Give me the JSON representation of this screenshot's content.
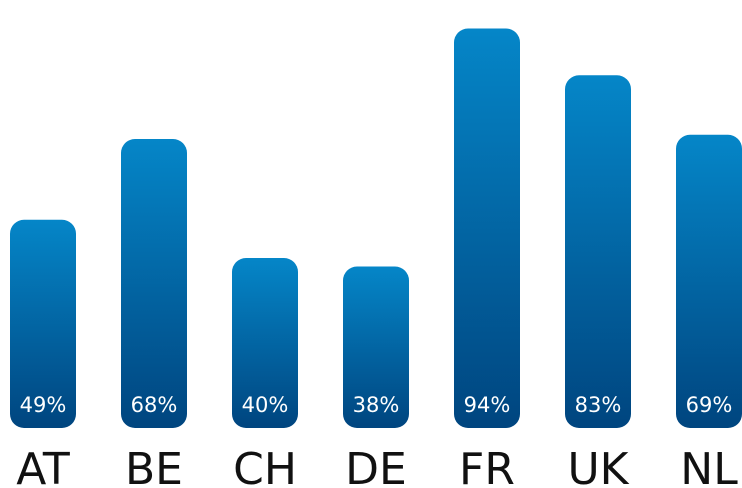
{
  "chart_data": {
    "type": "bar",
    "categories": [
      "AT",
      "BE",
      "CH",
      "DE",
      "FR",
      "UK",
      "NL"
    ],
    "values": [
      49,
      68,
      40,
      38,
      94,
      83,
      69
    ],
    "value_labels": [
      "49%",
      "68%",
      "40%",
      "38%",
      "94%",
      "83%",
      "69%"
    ],
    "ylim": [
      0,
      100
    ],
    "grid": false,
    "axes_visible": false,
    "bar_gradient": [
      "#0586c8",
      "#00457f"
    ]
  }
}
